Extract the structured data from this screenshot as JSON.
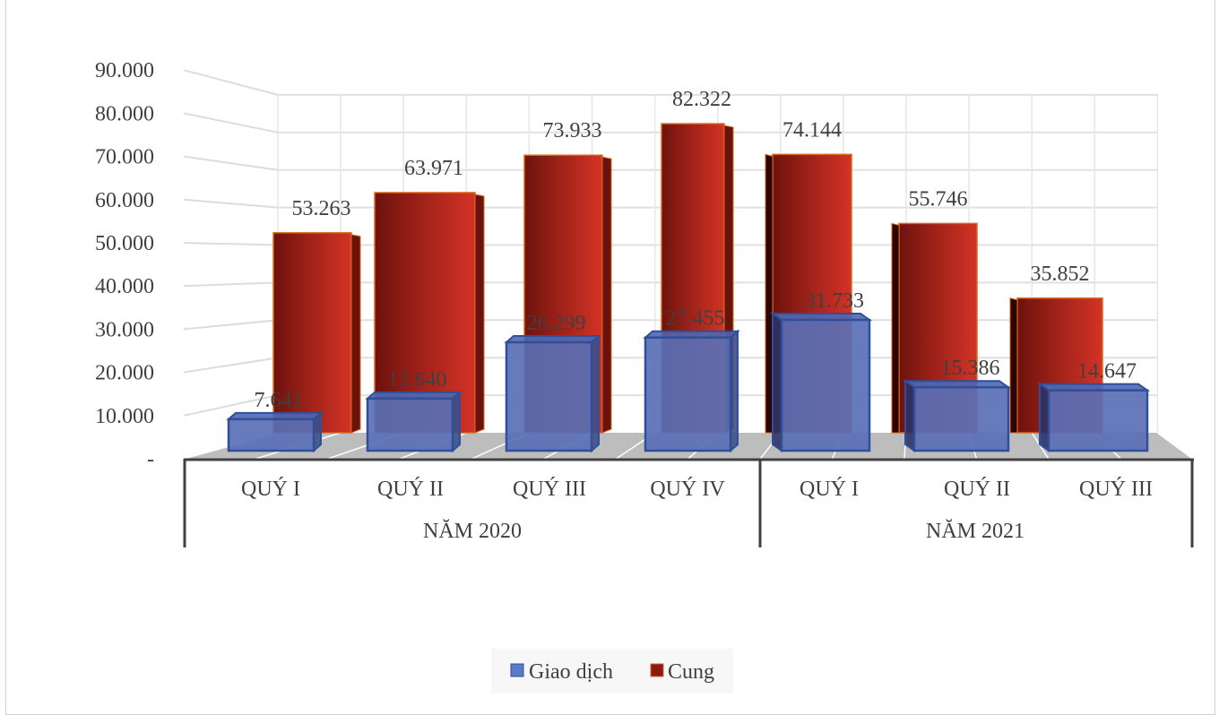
{
  "chart_data": {
    "type": "bar",
    "title": "",
    "xlabel": "",
    "ylabel": "",
    "ylim": [
      0,
      90000
    ],
    "grid": true,
    "legend_position": "bottom",
    "y_tick_labels": [
      "-",
      "10.000",
      "20.000",
      "30.000",
      "40.000",
      "50.000",
      "60.000",
      "70.000",
      "80.000",
      "90.000"
    ],
    "categories": [
      "QUÝ I",
      "QUÝ II",
      "QUÝ III",
      "QUÝ IV",
      "QUÝ I",
      "QUÝ II",
      "QUÝ III"
    ],
    "groups": [
      {
        "label": "NĂM 2020",
        "count": 4
      },
      {
        "label": "NĂM 2021",
        "count": 3
      }
    ],
    "series": [
      {
        "name": "Giao dịch",
        "color": "#5b7bc8",
        "values": [
          7641,
          12640,
          26299,
          27455,
          31733,
          15386,
          14647
        ],
        "labels": [
          "7.641",
          "12.640",
          "26.299",
          "27.455",
          "31.733",
          "15.386",
          "14.647"
        ]
      },
      {
        "name": "Cung",
        "color": "#b8261c",
        "values": [
          53263,
          63971,
          73933,
          82322,
          74144,
          55746,
          35852
        ],
        "labels": [
          "53.263",
          "63.971",
          "73.933",
          "82.322",
          "74.144",
          "55.746",
          "35.852"
        ]
      }
    ]
  }
}
